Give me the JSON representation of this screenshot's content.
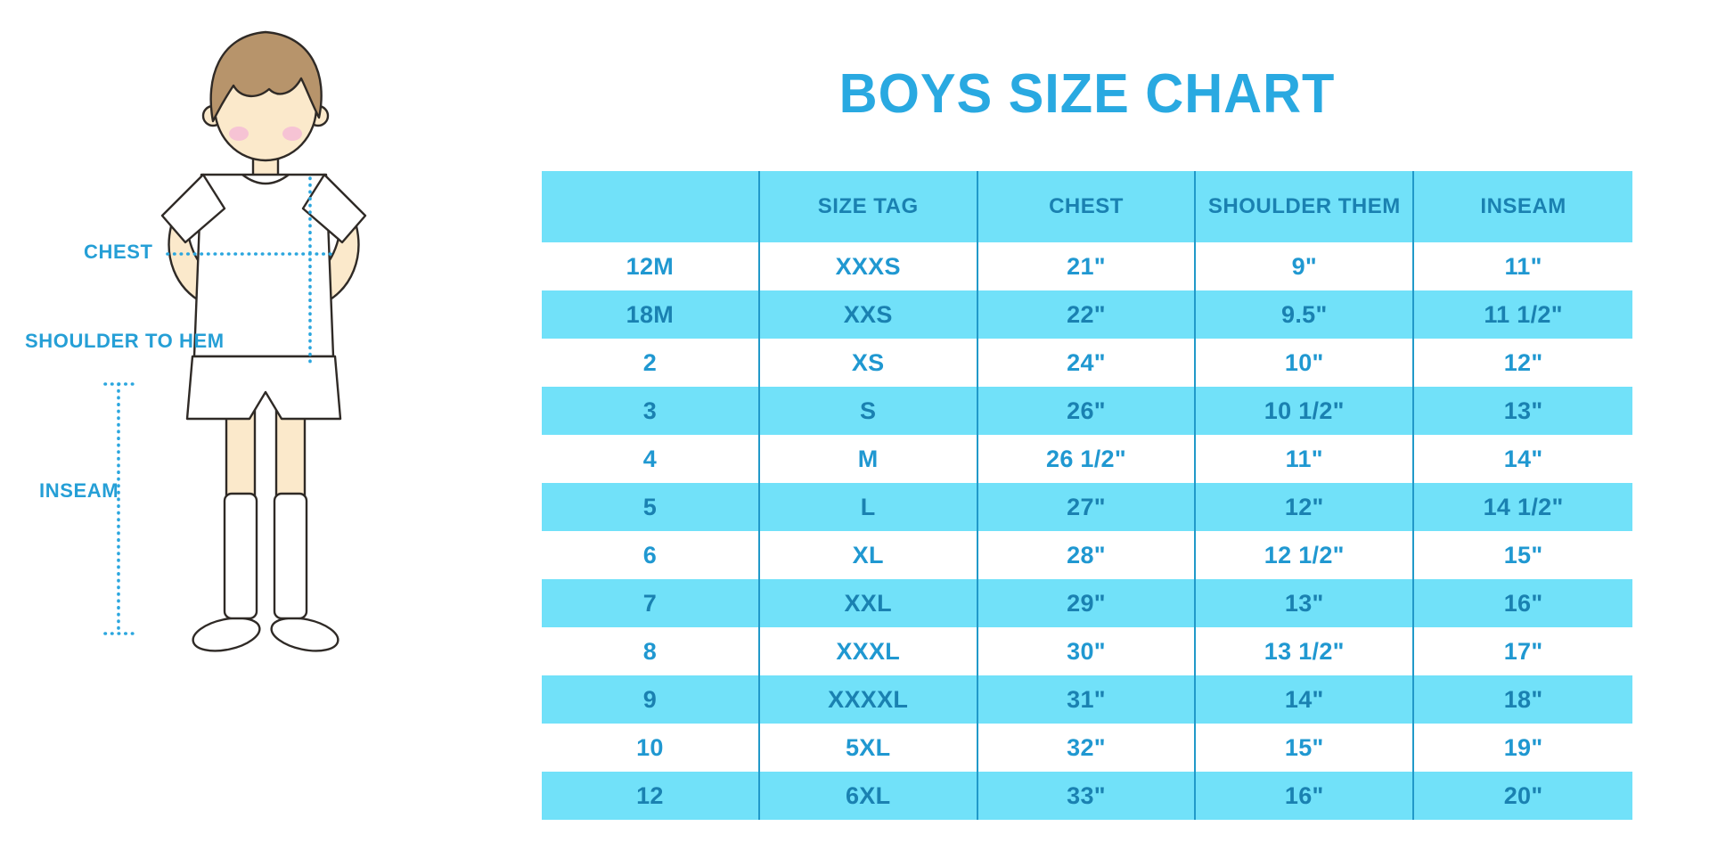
{
  "title": "BOYS SIZE CHART",
  "colors": {
    "stripe": "#71E1F9",
    "divider": "#2199C9",
    "title": "#29A9E1",
    "label": "#259FD6",
    "text_on_stripe": "#1A81B1",
    "text_on_white": "#2098D1",
    "dotted_line": "#2BA6DE"
  },
  "figure": {
    "labels": {
      "chest": "CHEST",
      "shoulder_to_hem": "SHOULDER TO HEM",
      "inseam": "INSEAM"
    }
  },
  "chart_data": {
    "type": "table",
    "title": "BOYS SIZE CHART",
    "columns": [
      "",
      "SIZE TAG",
      "CHEST",
      "SHOULDER THEM",
      "INSEAM"
    ],
    "rows": [
      [
        "12M",
        "XXXS",
        "21\"",
        "9\"",
        "11\""
      ],
      [
        "18M",
        "XXS",
        "22\"",
        "9.5\"",
        "11 1/2\""
      ],
      [
        "2",
        "XS",
        "24\"",
        "10\"",
        "12\""
      ],
      [
        "3",
        "S",
        "26\"",
        "10 1/2\"",
        "13\""
      ],
      [
        "4",
        "M",
        "26 1/2\"",
        "11\"",
        "14\""
      ],
      [
        "5",
        "L",
        "27\"",
        "12\"",
        "14 1/2\""
      ],
      [
        "6",
        "XL",
        "28\"",
        "12 1/2\"",
        "15\""
      ],
      [
        "7",
        "XXL",
        "29\"",
        "13\"",
        "16\""
      ],
      [
        "8",
        "XXXL",
        "30\"",
        "13 1/2\"",
        "17\""
      ],
      [
        "9",
        "XXXXL",
        "31\"",
        "14\"",
        "18\""
      ],
      [
        "10",
        "5XL",
        "32\"",
        "15\"",
        "19\""
      ],
      [
        "12",
        "6XL",
        "33\"",
        "16\"",
        "20\""
      ]
    ],
    "stripe_pattern": "header and even rows light blue, odd rows white",
    "legend_position": "none",
    "grid": "vertical column dividers only"
  }
}
